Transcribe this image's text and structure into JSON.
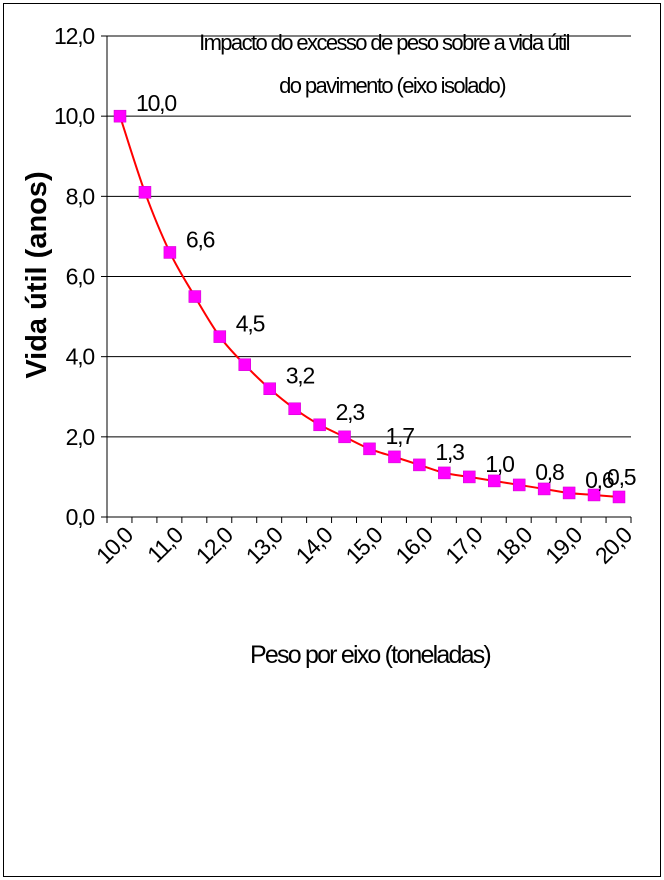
{
  "chart_data": {
    "type": "line",
    "title": [
      "Impacto do excesso de peso sobre a vida útil",
      "do pavimento (eixo isolado)"
    ],
    "xlabel": "Peso por eixo (toneladas)",
    "ylabel": "Vida útil  (anos)",
    "x": [
      10.0,
      10.5,
      11.0,
      11.5,
      12.0,
      12.5,
      13.0,
      13.5,
      14.0,
      14.5,
      15.0,
      15.5,
      16.0,
      16.5,
      17.0,
      17.5,
      18.0,
      18.5,
      19.0,
      19.5,
      20.0
    ],
    "series": [
      {
        "values": [
          10.0,
          8.1,
          6.6,
          5.5,
          4.5,
          3.8,
          3.2,
          2.7,
          2.3,
          2.0,
          1.7,
          1.5,
          1.3,
          1.1,
          1.0,
          0.9,
          0.8,
          0.7,
          0.6,
          0.55,
          0.5
        ]
      }
    ],
    "data_labels": [
      {
        "index": 0,
        "text": "10,0"
      },
      {
        "index": 2,
        "text": "6,6"
      },
      {
        "index": 4,
        "text": "4,5"
      },
      {
        "index": 6,
        "text": "3,2"
      },
      {
        "index": 8,
        "text": "2,3"
      },
      {
        "index": 10,
        "text": "1,7"
      },
      {
        "index": 12,
        "text": "1,3"
      },
      {
        "index": 14,
        "text": "1,0"
      },
      {
        "index": 16,
        "text": "0,8"
      },
      {
        "index": 18,
        "text": "0,6"
      },
      {
        "index": 20,
        "text": "0,5"
      }
    ],
    "ylim": [
      0,
      12
    ],
    "y_ticks": [
      "0,0",
      "2,0",
      "4,0",
      "6,0",
      "8,0",
      "10,0",
      "12,0"
    ],
    "x_ticks": [
      "10,0",
      "11,0",
      "12,0",
      "13,0",
      "14,0",
      "15,0",
      "16,0",
      "17,0",
      "18,0",
      "19,0",
      "20,0"
    ],
    "grid": "horizontal",
    "legend": "none",
    "colors": {
      "line": "#ff0000",
      "marker": "#ff00ff",
      "grid": "#000000"
    }
  }
}
